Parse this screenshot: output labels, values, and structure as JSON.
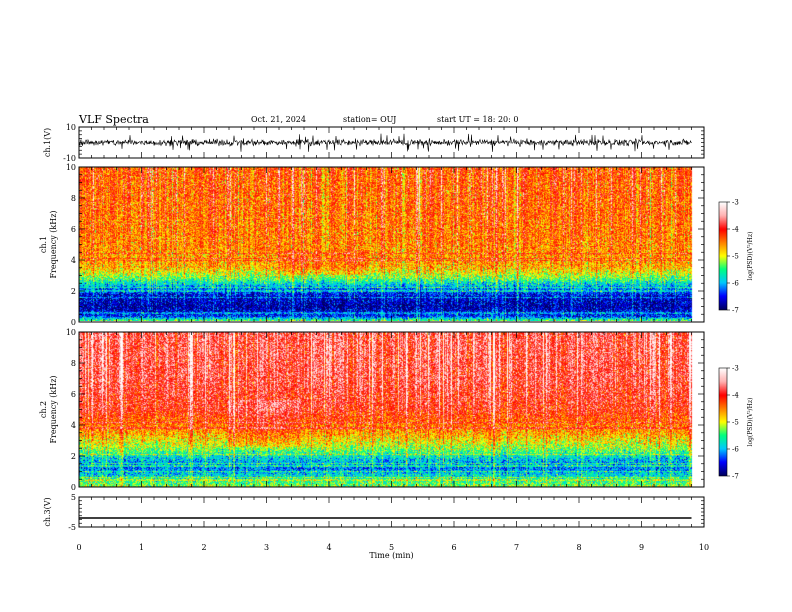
{
  "header": {
    "title": "VLF Spectra",
    "date": "Oct. 21, 2024",
    "station": "station= OUJ",
    "start_ut": "start  UT =   18: 20: 0"
  },
  "chart_data": [
    {
      "type": "line",
      "panel": "ch1-waveform",
      "ylabel": "ch.1(V)",
      "ylim": [
        -10,
        10
      ],
      "yticks": [
        "10",
        "-10"
      ],
      "x_range_min": [
        0,
        10
      ],
      "data_end_min": 9.8,
      "series": [
        {
          "baseline": 0,
          "typical_amplitude": 2,
          "spike_amplitude": 6
        }
      ]
    },
    {
      "type": "heatmap",
      "panel": "ch1-spectrogram",
      "ylabel": "ch.1\nFrequency (kHz)",
      "ylim": [
        0,
        10
      ],
      "yticks": [
        "0",
        "2",
        "4",
        "6",
        "8",
        "10"
      ],
      "x_range_min": [
        0,
        10
      ],
      "data_end_min": 9.8,
      "colorbar": {
        "label": "log(PSD)(V²/Hz)",
        "range": [
          -7,
          -3
        ],
        "ticks": [
          "-3",
          "-4",
          "-5",
          "-6",
          "-7"
        ]
      },
      "profile_khz_logpsd": [
        [
          0,
          -5.3
        ],
        [
          0.3,
          -6.4
        ],
        [
          0.9,
          -6.8
        ],
        [
          1.6,
          -6.6
        ],
        [
          2.2,
          -6.1
        ],
        [
          2.8,
          -5.3
        ],
        [
          3.5,
          -4.7
        ],
        [
          5,
          -4.5
        ],
        [
          7,
          -4.4
        ],
        [
          10,
          -4.3
        ]
      ]
    },
    {
      "type": "heatmap",
      "panel": "ch2-spectrogram",
      "ylabel": "ch.2\nFrequency (kHz)",
      "ylim": [
        0,
        10
      ],
      "yticks": [
        "0",
        "2",
        "4",
        "6",
        "8",
        "10"
      ],
      "x_range_min": [
        0,
        10
      ],
      "data_end_min": 9.8,
      "colorbar": {
        "label": "log(PSD)(V²/Hz)",
        "range": [
          -7,
          -3
        ],
        "ticks": [
          "-3",
          "-4",
          "-5",
          "-6",
          "-7"
        ]
      },
      "profile_khz_logpsd": [
        [
          0,
          -5.2
        ],
        [
          0.5,
          -5.6
        ],
        [
          1.2,
          -6.2
        ],
        [
          1.8,
          -5.9
        ],
        [
          2.5,
          -5.2
        ],
        [
          3.5,
          -4.6
        ],
        [
          5,
          -4.0
        ],
        [
          7,
          -3.8
        ],
        [
          10,
          -3.75
        ]
      ]
    },
    {
      "type": "line",
      "panel": "ch3-waveform",
      "ylabel": "ch.3(V)",
      "ylim": [
        -5,
        5
      ],
      "yticks": [
        "5",
        "-5"
      ],
      "x_range_min": [
        0,
        10
      ],
      "data_end_min": 9.8,
      "series": [
        {
          "constant": -2
        }
      ]
    }
  ],
  "xaxis": {
    "label": "Time  (min)",
    "ticks": [
      "0",
      "1",
      "2",
      "3",
      "4",
      "5",
      "6",
      "7",
      "8",
      "9",
      "10"
    ]
  },
  "colors": {
    "cb": [
      "#000060",
      "#0000ff",
      "#00c8ff",
      "#00ff80",
      "#ffff00",
      "#ff8000",
      "#ff0000",
      "#ffb0b0",
      "#ffffff"
    ]
  }
}
